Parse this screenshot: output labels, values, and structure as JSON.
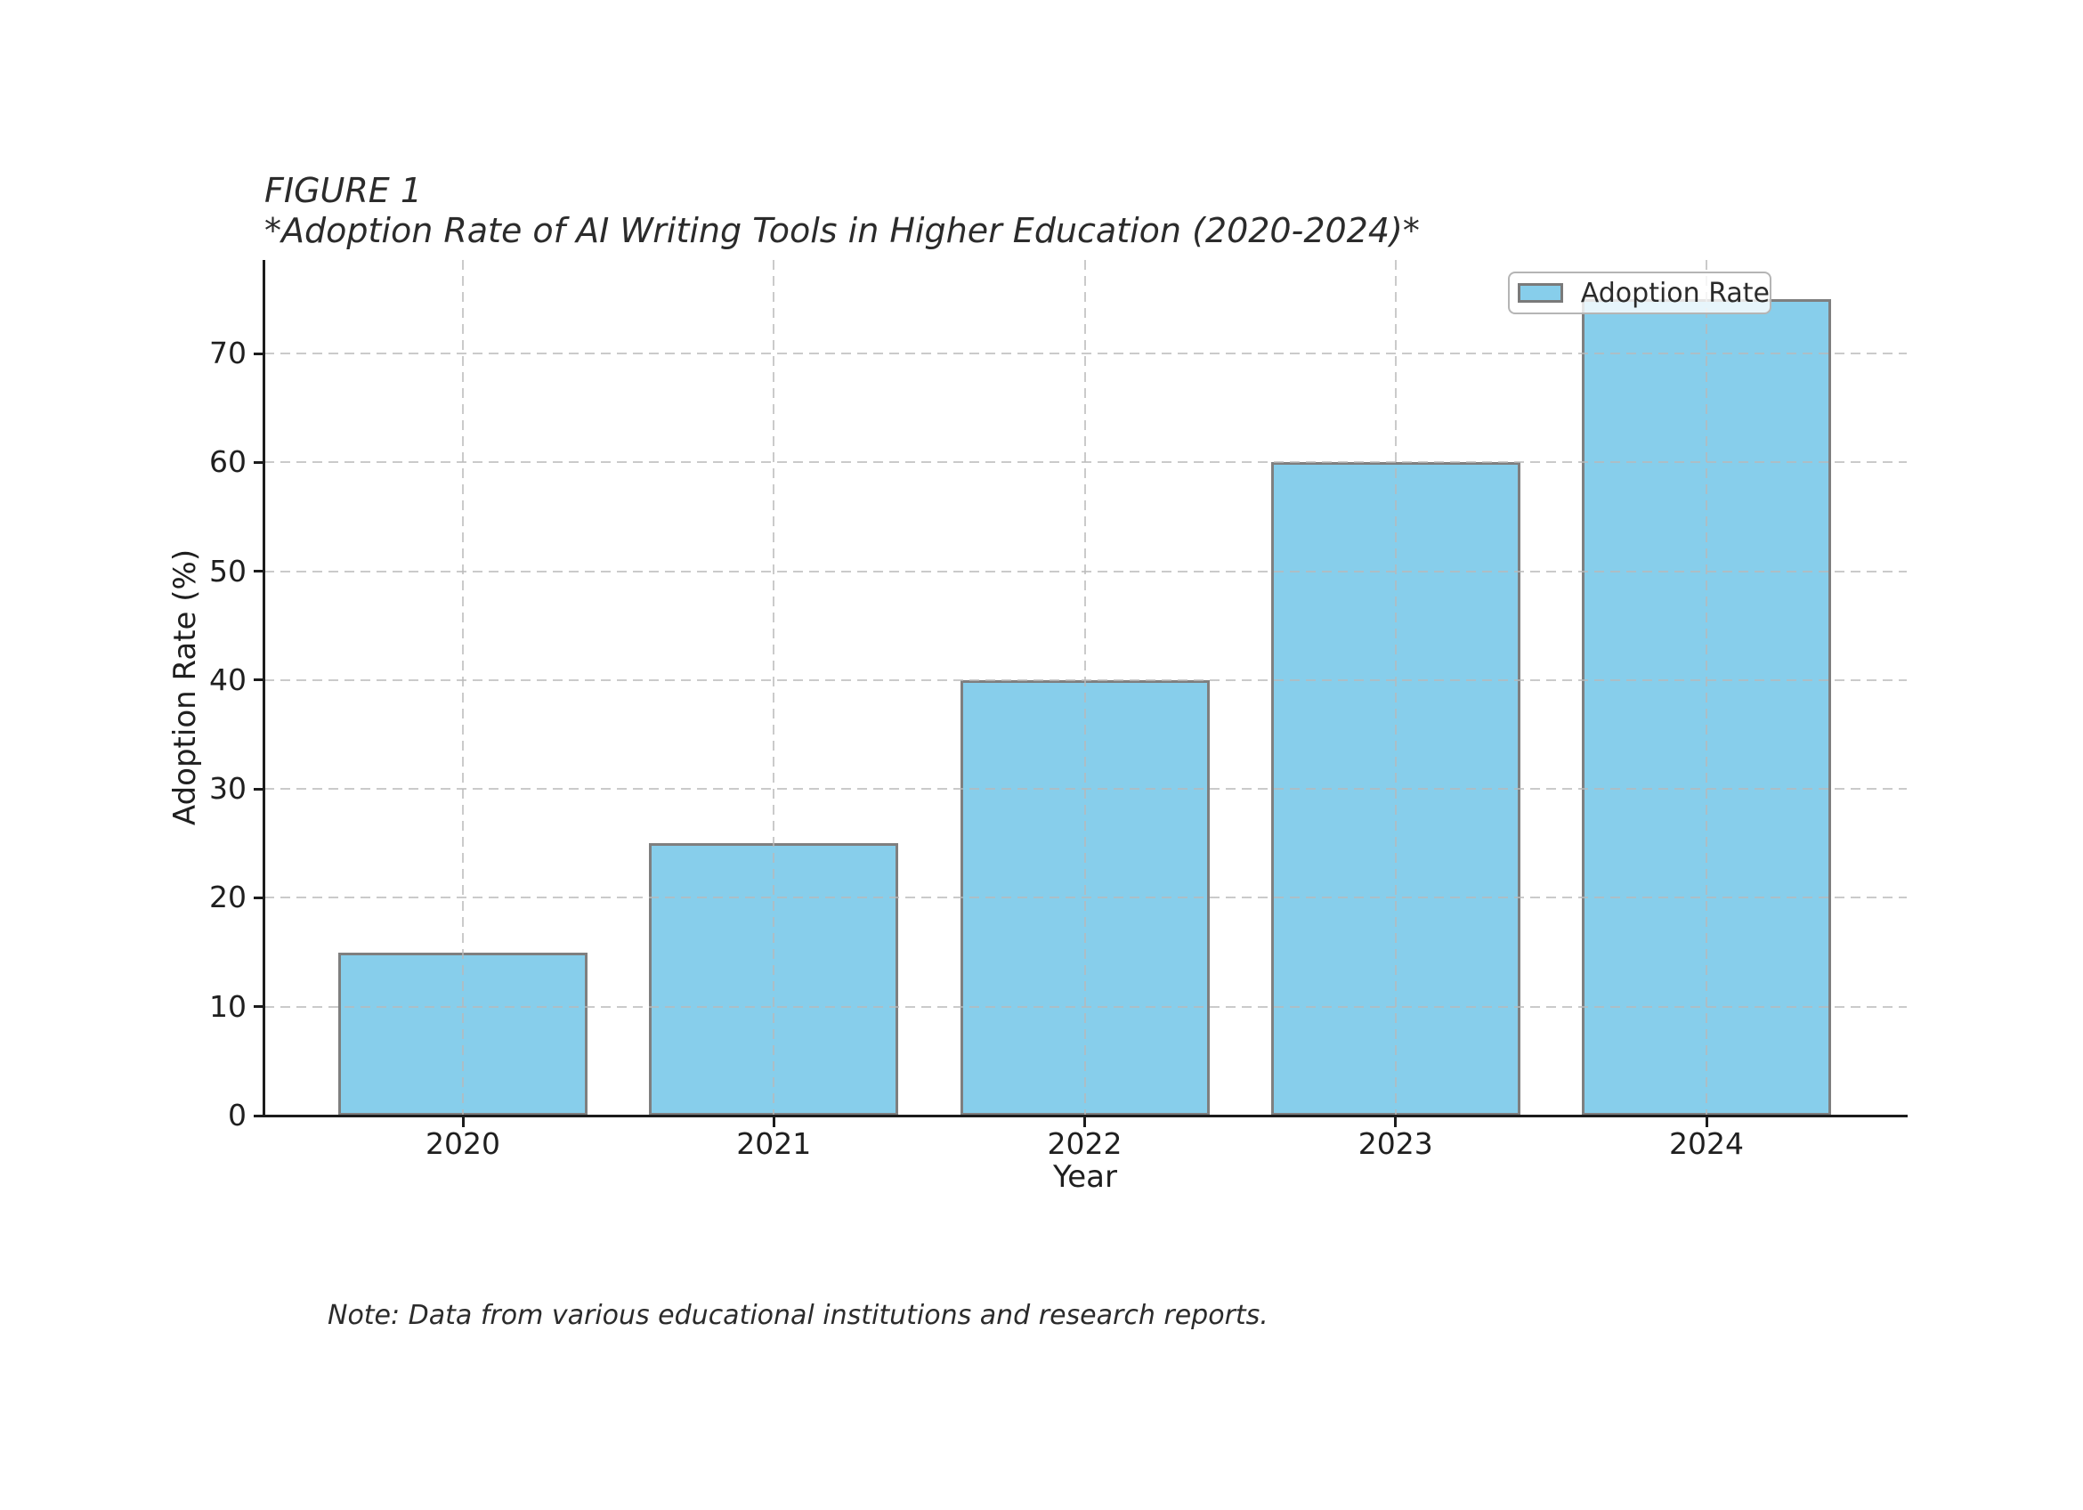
{
  "figure": {
    "title_line1": "FIGURE 1",
    "title_line2": "*Adoption Rate of AI Writing Tools in Higher Education (2020-2024)*",
    "note": "Note: Data from various educational institutions and research reports."
  },
  "legend": {
    "label": "Adoption Rate"
  },
  "chart_data": {
    "type": "bar",
    "title": "*Adoption Rate of AI Writing Tools in Higher Education (2020-2024)*",
    "categories": [
      "2020",
      "2021",
      "2022",
      "2023",
      "2024"
    ],
    "series": [
      {
        "name": "Adoption Rate",
        "values": [
          15,
          25,
          40,
          60,
          75
        ]
      }
    ],
    "xlabel": "Year",
    "ylabel": "Adoption Rate (%)",
    "yticks": [
      0,
      10,
      20,
      30,
      40,
      50,
      60,
      70
    ],
    "ylim": [
      0,
      78.6
    ],
    "grid": "dashed, horizontal and vertical, drawn above bars",
    "legend_position": "upper right",
    "bar_color": "#87CEEB",
    "bar_edge_color": "#7f7f7f"
  },
  "colors": {
    "bar_fill": "#87CEEB",
    "bar_edge": "#7f7f7f",
    "grid": "#b9b9b9",
    "axis": "#1c1c1c",
    "text": "#262626"
  }
}
